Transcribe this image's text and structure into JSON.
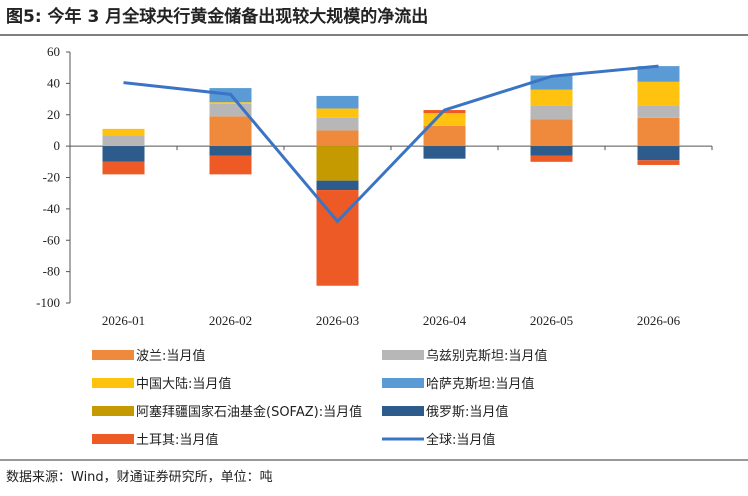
{
  "title": "图5: 今年 3 月全球央行黄金储备出现较大规模的净流出",
  "source": "数据来源：Wind，财通证券研究所，单位：吨",
  "chart_data": {
    "type": "bar",
    "categories": [
      "2026-01",
      "2026-02",
      "2026-03",
      "2026-04",
      "2026-05",
      "2026-06"
    ],
    "ylim": [
      -100,
      60
    ],
    "yticks": [
      -100,
      -80,
      -60,
      -40,
      -20,
      0,
      20,
      40,
      60
    ],
    "series": [
      {
        "name": "波兰:当月值",
        "color": "#ef8a3d",
        "values": [
          0,
          19,
          10,
          13,
          17,
          18
        ]
      },
      {
        "name": "乌兹别克斯坦:当月值",
        "color": "#b7b7b7",
        "values": [
          7,
          8,
          8,
          0,
          9,
          8
        ]
      },
      {
        "name": "中国大陆:当月值",
        "color": "#ffc20e",
        "values": [
          4,
          1,
          6,
          8,
          10,
          15
        ]
      },
      {
        "name": "哈萨克斯坦:当月值",
        "color": "#5b9bd5",
        "values": [
          0,
          9,
          8,
          0,
          9,
          10
        ]
      },
      {
        "name": "阿塞拜疆国家石油基金(SOFAZ):当月值",
        "color": "#c49a00",
        "values": [
          0,
          0,
          -22,
          0,
          0,
          0
        ]
      },
      {
        "name": "俄罗斯:当月值",
        "color": "#2c5b8c",
        "values": [
          -10,
          -6,
          -6,
          -8,
          -6,
          -9
        ]
      },
      {
        "name": "土耳其:当月值",
        "color": "#ee5a26",
        "values": [
          -8,
          -12,
          -61,
          2,
          -4,
          -3
        ]
      },
      {
        "name": "全球:当月值",
        "color": "#3a74c4",
        "type": "line",
        "values": [
          40.5,
          33,
          -48,
          23,
          44.5,
          51
        ]
      }
    ]
  }
}
